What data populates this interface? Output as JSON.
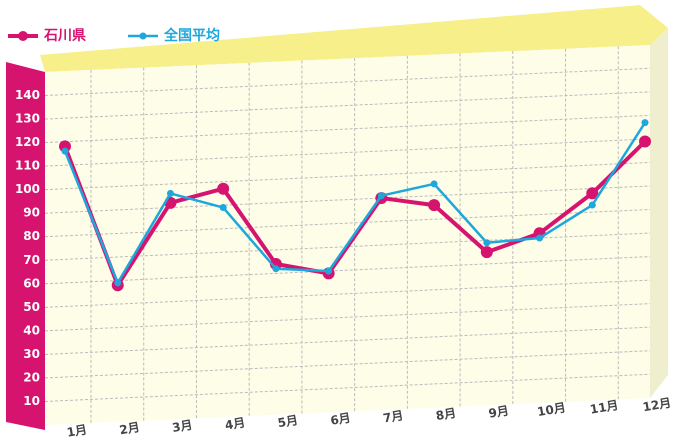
{
  "chart_data": {
    "type": "line",
    "categories": [
      "1月",
      "2月",
      "3月",
      "4月",
      "5月",
      "6月",
      "7月",
      "8月",
      "9月",
      "10月",
      "11月",
      "12月"
    ],
    "series": [
      {
        "name": "石川県",
        "color": "#d6136f",
        "values": [
          118,
          58,
          92,
          97,
          64,
          59,
          90,
          86,
          65,
          72,
          88,
          109
        ]
      },
      {
        "name": "全国平均",
        "color": "#1ea7dc",
        "values": [
          116,
          59,
          96,
          89,
          62,
          60,
          91,
          95,
          69,
          70,
          83,
          117
        ]
      }
    ],
    "ylim": [
      0,
      150
    ],
    "yticks": [
      10,
      20,
      30,
      40,
      50,
      60,
      70,
      80,
      90,
      100,
      110,
      120,
      130,
      140
    ],
    "grid": true
  }
}
